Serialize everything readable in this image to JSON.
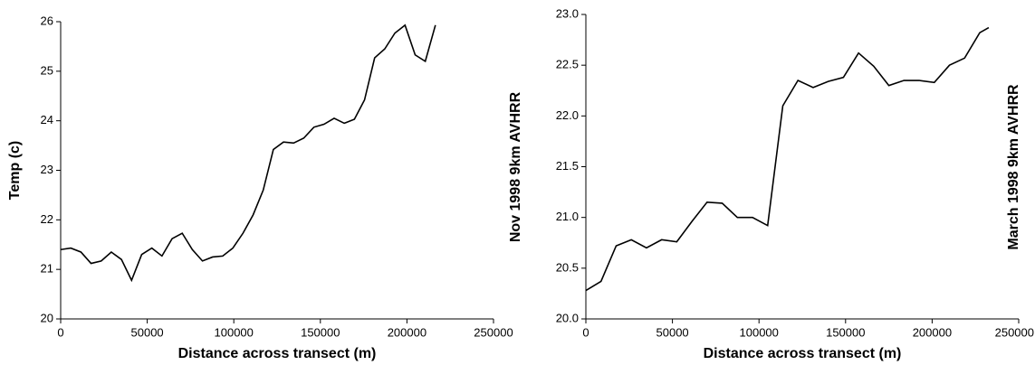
{
  "chart_data": [
    {
      "type": "line",
      "ylabel": "Temp (c)",
      "xlabel": "Distance across transect (m)",
      "side_label": "Nov 1998 9km AVHRR",
      "x": [
        0,
        5850,
        11700,
        17550,
        23400,
        29250,
        35100,
        40950,
        46800,
        52650,
        58500,
        64350,
        70200,
        76050,
        81900,
        87750,
        93600,
        99450,
        105300,
        111150,
        117000,
        122850,
        128700,
        134550,
        140400,
        146250,
        152100,
        157950,
        163800,
        169650,
        175500,
        181350,
        187200,
        193050,
        198900,
        204750,
        210600,
        216450
      ],
      "series": [
        {
          "color": "#000000",
          "values": [
            21.4,
            21.43,
            21.35,
            21.12,
            21.17,
            21.35,
            21.2,
            20.78,
            21.3,
            21.43,
            21.27,
            21.62,
            21.73,
            21.4,
            21.17,
            21.25,
            21.27,
            21.43,
            21.73,
            22.1,
            22.6,
            23.42,
            23.57,
            23.55,
            23.65,
            23.87,
            23.93,
            24.05,
            23.95,
            24.03,
            24.42,
            25.27,
            25.45,
            25.77,
            25.93,
            25.33,
            25.2,
            25.93
          ]
        }
      ],
      "xlim": [
        0,
        250000
      ],
      "xticks": [
        0,
        50000,
        100000,
        150000,
        200000,
        250000
      ],
      "ylim": [
        20,
        26
      ],
      "yticks": [
        20,
        21,
        22,
        23,
        24,
        25,
        26
      ]
    },
    {
      "type": "line",
      "xlabel": "Distance across transect (m)",
      "side_label": "March 1998 9km AVHRR",
      "x": [
        0,
        8750,
        17500,
        26250,
        35000,
        43750,
        52500,
        61250,
        70000,
        78750,
        87500,
        96250,
        105000,
        113750,
        122500,
        131250,
        140000,
        148750,
        157500,
        166250,
        175000,
        183750,
        192500,
        201250,
        210000,
        218750,
        227500,
        232700
      ],
      "series": [
        {
          "color": "#000000",
          "values": [
            20.28,
            20.37,
            20.72,
            20.78,
            20.7,
            20.78,
            20.76,
            20.96,
            21.15,
            21.14,
            21.0,
            21.0,
            20.92,
            22.1,
            22.35,
            22.28,
            22.34,
            22.38,
            22.62,
            22.49,
            22.3,
            22.35,
            22.35,
            22.33,
            22.5,
            22.57,
            22.82,
            22.87
          ]
        }
      ],
      "xlim": [
        0,
        250000
      ],
      "xticks": [
        0,
        50000,
        100000,
        150000,
        200000,
        250000
      ],
      "ylim": [
        20,
        23
      ],
      "yticks": [
        {
          "value": 20,
          "label": "20.0"
        },
        {
          "value": 20.5,
          "label": "20.5"
        },
        {
          "value": 21,
          "label": "21.0"
        },
        {
          "value": 21.5,
          "label": "21.5"
        },
        {
          "value": 22,
          "label": "22.0"
        },
        {
          "value": 22.5,
          "label": "22.5"
        },
        {
          "value": 23,
          "label": "23.0"
        }
      ]
    }
  ]
}
